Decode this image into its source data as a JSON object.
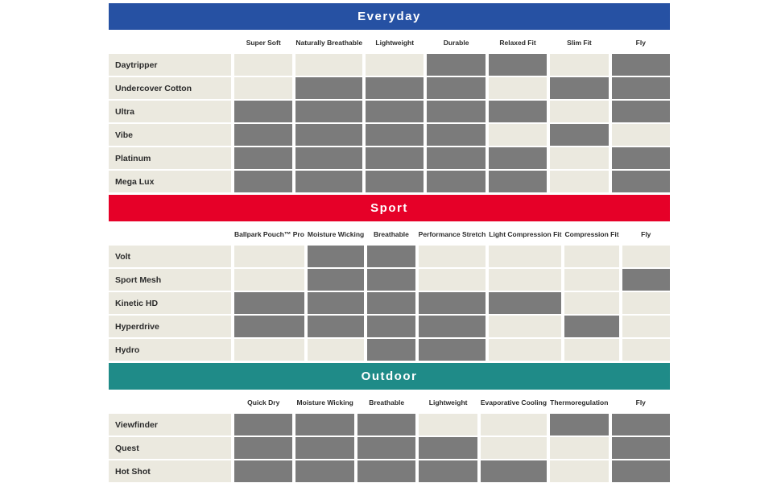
{
  "colors": {
    "background": "#ffffff",
    "filled_cell": "#7b7b7b",
    "empty_cell": "#ebe9df",
    "text": "#2b2b2b",
    "everyday_header": "#2651a3",
    "sport_header": "#e60028",
    "outdoor_header": "#1f8b88"
  },
  "legend_note": "1 = product has feature (gray filled cell), 0 = feature absent (beige cell)",
  "chart_data": [
    {
      "type": "table",
      "title": "Everyday",
      "header_color": "#2651a3",
      "columns": [
        "Super Soft",
        "Naturally Breathable",
        "Lightweight",
        "Durable",
        "Relaxed Fit",
        "Slim Fit",
        "Fly"
      ],
      "rows": [
        {
          "name": "Daytripper",
          "features": [
            0,
            0,
            0,
            1,
            1,
            0,
            1
          ]
        },
        {
          "name": "Undercover Cotton",
          "features": [
            0,
            1,
            1,
            1,
            0,
            1,
            1
          ]
        },
        {
          "name": "Ultra",
          "features": [
            1,
            1,
            1,
            1,
            1,
            0,
            1
          ]
        },
        {
          "name": "Vibe",
          "features": [
            1,
            1,
            1,
            1,
            0,
            1,
            0
          ]
        },
        {
          "name": "Platinum",
          "features": [
            1,
            1,
            1,
            1,
            1,
            0,
            1
          ]
        },
        {
          "name": "Mega Lux",
          "features": [
            1,
            1,
            1,
            1,
            1,
            0,
            1
          ]
        }
      ]
    },
    {
      "type": "table",
      "title": "Sport",
      "header_color": "#e60028",
      "columns": [
        "Ballpark Pouch™ Pro",
        "Moisture Wicking",
        "Breathable",
        "Performance Stretch",
        "Light Compression Fit",
        "Compression Fit",
        "Fly"
      ],
      "rows": [
        {
          "name": "Volt",
          "features": [
            0,
            1,
            1,
            0,
            0,
            0,
            0
          ]
        },
        {
          "name": "Sport Mesh",
          "features": [
            0,
            1,
            1,
            0,
            0,
            0,
            1
          ]
        },
        {
          "name": "Kinetic HD",
          "features": [
            1,
            1,
            1,
            1,
            1,
            0,
            0
          ]
        },
        {
          "name": "Hyperdrive",
          "features": [
            1,
            1,
            1,
            1,
            0,
            1,
            0
          ]
        },
        {
          "name": "Hydro",
          "features": [
            0,
            0,
            1,
            1,
            0,
            0,
            0
          ]
        }
      ]
    },
    {
      "type": "table",
      "title": "Outdoor",
      "header_color": "#1f8b88",
      "columns": [
        "Quick Dry",
        "Moisture Wicking",
        "Breathable",
        "Lightweight",
        "Evaporative Cooling",
        "Thermoregulation",
        "Fly"
      ],
      "rows": [
        {
          "name": "Viewfinder",
          "features": [
            1,
            1,
            1,
            0,
            0,
            1,
            1
          ]
        },
        {
          "name": "Quest",
          "features": [
            1,
            1,
            1,
            1,
            0,
            0,
            1
          ]
        },
        {
          "name": "Hot Shot",
          "features": [
            1,
            1,
            1,
            1,
            1,
            0,
            1
          ]
        }
      ]
    }
  ]
}
